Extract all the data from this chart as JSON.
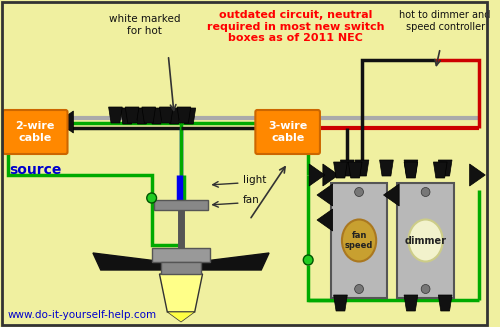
{
  "bg_color": "#f0f0a0",
  "border_color": "#333333",
  "text_outdated": "outdated circuit, neutral\nrequired in most new switch\nboxes as of 2011 NEC",
  "text_white_marked": "white marked\nfor hot",
  "text_hot_to": "hot to dimmer and\nspeed controller",
  "text_2wire": "2-wire\ncable",
  "text_3wire": "3-wire\ncable",
  "text_source": "source",
  "text_light": "light",
  "text_fan": "fan",
  "text_fan_speed": "fan\nspeed",
  "text_dimmer": "dimmer",
  "text_website": "www.do-it-yourself-help.com",
  "orange_label_color": "#ff8800",
  "red_text_color": "#ff0000",
  "blue_text_color": "#0000cc",
  "green_wire": "#00aa00",
  "white_wire": "#aaaaaa",
  "black_wire": "#111111",
  "red_wire": "#cc0000",
  "blue_wire": "#0000ee"
}
